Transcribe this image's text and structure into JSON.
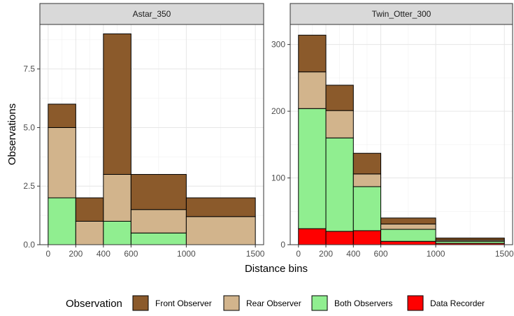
{
  "chart_data": {
    "type": "bar",
    "ylabel": "Observations",
    "xlabel": "Distance bins",
    "bins": [
      [
        0,
        200
      ],
      [
        200,
        400
      ],
      [
        400,
        600
      ],
      [
        600,
        1000
      ],
      [
        1000,
        1500
      ]
    ],
    "x_ticks": [
      0,
      200,
      400,
      600,
      1000,
      1500
    ],
    "legend": {
      "title": "Observation",
      "placement": "bottom",
      "entries": [
        {
          "key": "front",
          "label": "Front Observer",
          "color": "#8b5a2b"
        },
        {
          "key": "rear",
          "label": "Rear Observer",
          "color": "#d2b48c"
        },
        {
          "key": "both",
          "label": "Both Observers",
          "color": "#90ee90"
        },
        {
          "key": "recorder",
          "label": "Data Recorder",
          "color": "#ff0000"
        }
      ]
    },
    "stack_order": [
      "recorder",
      "both",
      "rear",
      "front"
    ],
    "grid": true,
    "panels": [
      {
        "title": "Astar_350",
        "ylim": [
          0,
          9.4
        ],
        "y_ticks": [
          0,
          2.5,
          5,
          7.5
        ],
        "y_tick_labels": [
          "0.0",
          "2.5",
          "5.0",
          "7.5"
        ],
        "series": [
          {
            "key": "recorder",
            "values": [
              0,
              0,
              0,
              0,
              0
            ]
          },
          {
            "key": "both",
            "values": [
              2,
              0,
              1,
              0.5,
              0
            ]
          },
          {
            "key": "rear",
            "values": [
              3,
              1,
              2,
              1,
              1.2
            ]
          },
          {
            "key": "front",
            "values": [
              1,
              1,
              6,
              1.5,
              0.8
            ]
          }
        ]
      },
      {
        "title": "Twin_Otter_300",
        "ylim": [
          0,
          330
        ],
        "y_ticks": [
          0,
          100,
          200,
          300
        ],
        "y_tick_labels": [
          "0",
          "100",
          "200",
          "300"
        ],
        "series": [
          {
            "key": "recorder",
            "values": [
              24,
              20,
              21,
              5,
              2
            ]
          },
          {
            "key": "both",
            "values": [
              180,
              140,
              66,
              18,
              3
            ]
          },
          {
            "key": "rear",
            "values": [
              55,
              41,
              19,
              8,
              2
            ]
          },
          {
            "key": "front",
            "values": [
              55,
              38,
              31,
              9,
              3
            ]
          }
        ]
      }
    ]
  }
}
